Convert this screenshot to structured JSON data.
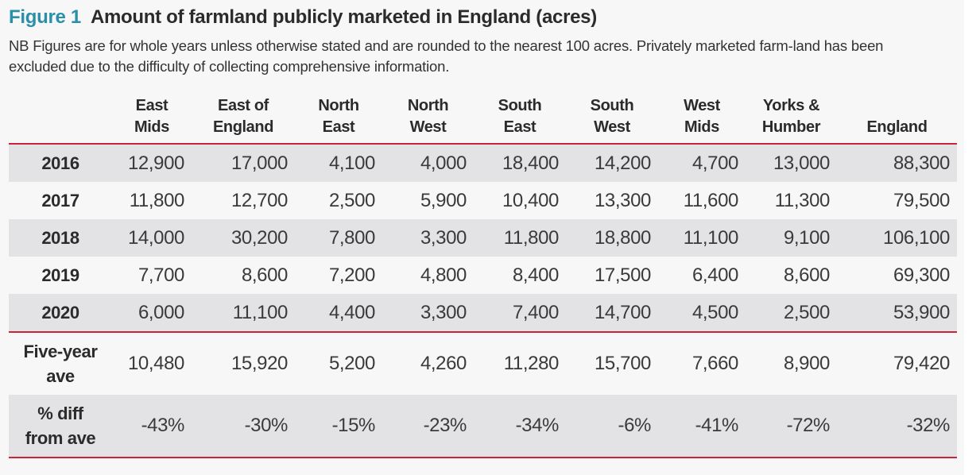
{
  "figure": {
    "label": "Figure 1",
    "title": "Amount of farmland publicly marketed in England (acres)",
    "note": "NB Figures are for whole years unless otherwise stated and are rounded to the nearest 100 acres.  Privately marketed farm-land has been excluded due to the difficulty of collecting comprehensive information."
  },
  "colors": {
    "accent": "#2a8fa8",
    "rule": "#c8243a",
    "shade": "#e3e3e5"
  },
  "table": {
    "columns": [
      {
        "line1": "East",
        "line2": "Mids"
      },
      {
        "line1": "East of",
        "line2": "England"
      },
      {
        "line1": "North",
        "line2": "East"
      },
      {
        "line1": "North",
        "line2": "West"
      },
      {
        "line1": "South",
        "line2": "East"
      },
      {
        "line1": "South",
        "line2": "West"
      },
      {
        "line1": "West",
        "line2": "Mids"
      },
      {
        "line1": "Yorks &",
        "line2": "Humber"
      },
      {
        "line1": "",
        "line2": "England"
      }
    ],
    "rows": [
      {
        "label": "2016",
        "values": [
          "12,900",
          "17,000",
          "4,100",
          "4,000",
          "18,400",
          "14,200",
          "4,700",
          "13,000",
          "88,300"
        ]
      },
      {
        "label": "2017",
        "values": [
          "11,800",
          "12,700",
          "2,500",
          "5,900",
          "10,400",
          "13,300",
          "11,600",
          "11,300",
          "79,500"
        ]
      },
      {
        "label": "2018",
        "values": [
          "14,000",
          "30,200",
          "7,800",
          "3,300",
          "11,800",
          "18,800",
          "11,100",
          "9,100",
          "106,100"
        ]
      },
      {
        "label": "2019",
        "values": [
          "7,700",
          "8,600",
          "7,200",
          "4,800",
          "8,400",
          "17,500",
          "6,400",
          "8,600",
          "69,300"
        ]
      },
      {
        "label": "2020",
        "values": [
          "6,000",
          "11,100",
          "4,400",
          "3,300",
          "7,400",
          "14,700",
          "4,500",
          "2,500",
          "53,900"
        ]
      },
      {
        "label_line1": "Five-year",
        "label_line2": "ave",
        "values": [
          "10,480",
          "15,920",
          "5,200",
          "4,260",
          "11,280",
          "15,700",
          "7,660",
          "8,900",
          "79,420"
        ]
      },
      {
        "label_line1": "% diff",
        "label_line2": "from ave",
        "values": [
          "-43%",
          "-30%",
          "-15%",
          "-23%",
          "-34%",
          "-6%",
          "-41%",
          "-72%",
          "-32%"
        ]
      }
    ]
  }
}
